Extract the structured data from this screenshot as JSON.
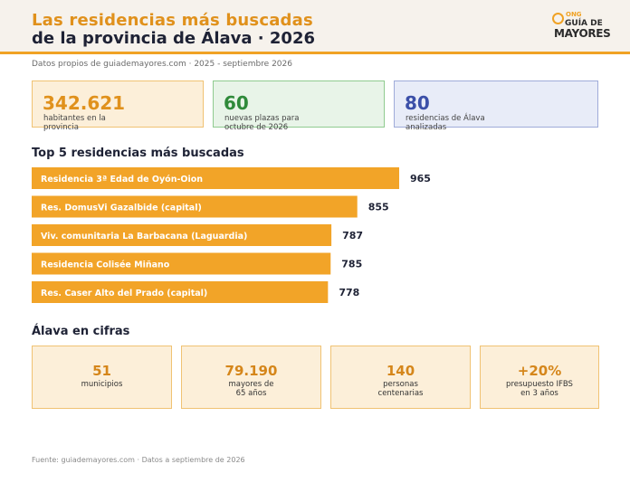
{
  "header": {
    "title_line1": "Las residencias más buscadas",
    "title_line2": "de la provincia de Álava · 2026",
    "logo": {
      "ong": "ONG",
      "guia": "GUÍA DE",
      "mayores": "MAYORES"
    }
  },
  "subtitle": "Datos propios de guiademayores.com · 2025 - septiembre 2026",
  "kpis": [
    {
      "value": "342.621",
      "label_line1": "habitantes en la",
      "label_line2": "provincia",
      "color": "#e0911c"
    },
    {
      "value": "60",
      "label_line1": "nuevas plazas para",
      "label_line2": "octubre de 2026",
      "color": "#2f8a3a"
    },
    {
      "value": "80",
      "label_line1": "residencias de Álava",
      "label_line2": "analizadas",
      "color": "#3b4fa8"
    }
  ],
  "top5_title": "Top 5 residencias más buscadas",
  "chart_data": {
    "type": "bar",
    "orientation": "horizontal",
    "title": "Top 5 residencias más buscadas",
    "categories": [
      "Residencia 3ª Edad de Oyón-Oion",
      "Res. DomusVi Gazalbide (capital)",
      "Viv. comunitaria La Barbacana (Laguardia)",
      "Residencia Colisée Miñano",
      "Res. Caser Alto del Prado (capital)"
    ],
    "values": [
      965,
      855,
      787,
      785,
      778
    ],
    "value_labels": [
      "965",
      "855",
      "787",
      "785",
      "778"
    ],
    "xlim": [
      0,
      965
    ],
    "bar_color": "#f2a428",
    "grid": false,
    "legend": "none"
  },
  "cifras_title": "Álava en cifras",
  "cifras": [
    {
      "value": "51",
      "label_line1": "municipios",
      "label_line2": ""
    },
    {
      "value": "79.190",
      "label_line1": "mayores de",
      "label_line2": "65 años"
    },
    {
      "value": "140",
      "label_line1": "personas",
      "label_line2": "centenarias"
    },
    {
      "value": "+20%",
      "label_line1": "presupuesto IFBS",
      "label_line2": "en 3 años"
    }
  ],
  "footer": "Fuente: guiademayores.com · Datos a septiembre de 2026"
}
